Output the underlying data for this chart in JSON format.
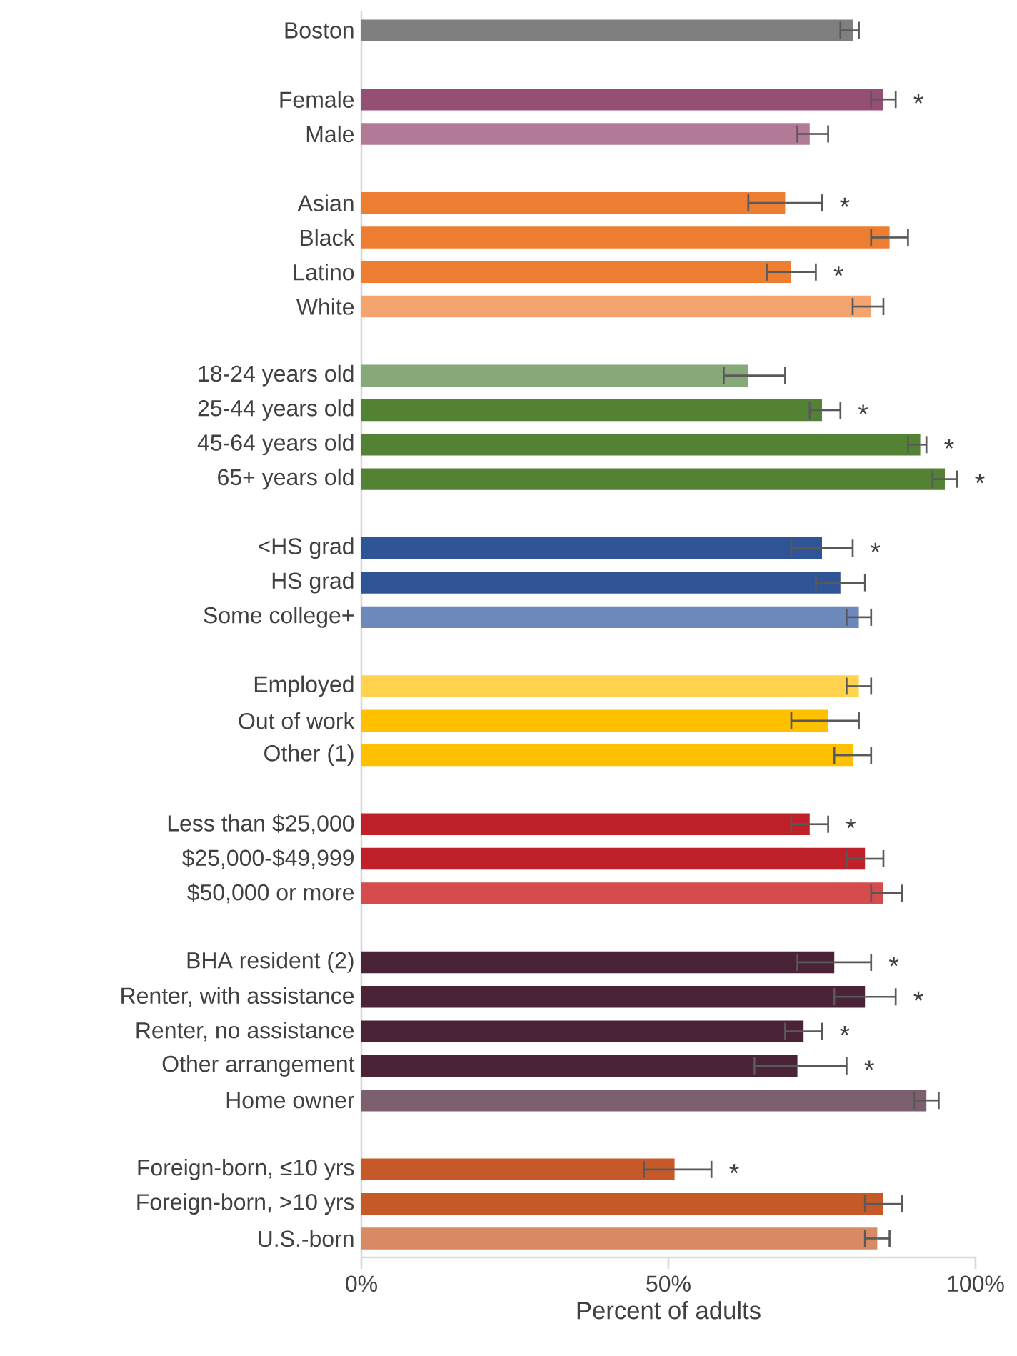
{
  "chart_data": {
    "type": "bar",
    "orientation": "horizontal",
    "xlabel": "Percent of adults",
    "categories": [
      "Boston",
      null,
      "Female",
      "Male",
      null,
      "Asian",
      "Black",
      "Latino",
      "White",
      null,
      "18-24 years old",
      "25-44 years old",
      "45-64 years old",
      "65+ years old",
      null,
      "<HS grad",
      "HS grad",
      "Some college+",
      null,
      "Employed",
      "Out of work",
      "Other (1)",
      null,
      "Less than $25,000",
      "$25,000-$49,999",
      "$50,000 or more",
      null,
      "BHA resident (2)",
      "Renter, with assistance",
      "Renter, no assistance",
      "Other arrangement",
      "Home owner",
      null,
      "Foreign-born, ≤10 yrs",
      "Foreign-born, >10 yrs",
      "U.S.-born"
    ],
    "values": [
      80,
      null,
      85,
      73,
      null,
      69,
      86,
      70,
      83,
      null,
      63,
      75,
      91,
      95,
      null,
      75,
      78,
      81,
      null,
      81,
      76,
      80,
      null,
      73,
      82,
      85,
      null,
      77,
      82,
      72,
      71,
      92,
      null,
      51,
      85,
      84
    ],
    "errors": [
      [
        78,
        81
      ],
      null,
      [
        83,
        87
      ],
      [
        71,
        76
      ],
      null,
      [
        63,
        75
      ],
      [
        83,
        89
      ],
      [
        66,
        74
      ],
      [
        80,
        85
      ],
      null,
      [
        59,
        69
      ],
      [
        73,
        78
      ],
      [
        89,
        92
      ],
      [
        93,
        97
      ],
      null,
      [
        70,
        80
      ],
      [
        74,
        82
      ],
      [
        79,
        83
      ],
      null,
      [
        79,
        83
      ],
      [
        70,
        81
      ],
      [
        77,
        83
      ],
      null,
      [
        70,
        76
      ],
      [
        79,
        85
      ],
      [
        83,
        88
      ],
      null,
      [
        71,
        83
      ],
      [
        77,
        87
      ],
      [
        69,
        75
      ],
      [
        64,
        79
      ],
      [
        90,
        94
      ],
      null,
      [
        46,
        57
      ],
      [
        82,
        88
      ],
      [
        82,
        86
      ]
    ],
    "colors": [
      "#7f7f7f",
      null,
      "#954f72",
      "#b27a96",
      null,
      "#ed7d31",
      "#ed7d31",
      "#ed7d31",
      "#f3a46f",
      null,
      "#87a878",
      "#548235",
      "#548235",
      "#548235",
      null,
      "#2f5597",
      "#2f5597",
      "#6d88bb",
      null,
      "#ffd34d",
      "#ffc000",
      "#ffc000",
      null,
      "#c0202a",
      "#c0202a",
      "#d44c4c",
      null,
      "#4a2338",
      "#4a2338",
      "#4a2338",
      "#4a2338",
      "#7d6070",
      null,
      "#c55a28",
      "#c55a28",
      "#d88a65"
    ],
    "xlim": [
      0,
      100
    ],
    "xticks": [
      {
        "value": 0,
        "label": "0%"
      },
      {
        "value": 50,
        "label": "50%"
      },
      {
        "value": 100,
        "label": "100%"
      }
    ],
    "value_labels": [
      null,
      null,
      "*",
      null,
      null,
      "*",
      null,
      "*",
      null,
      null,
      null,
      "*",
      "*",
      "*",
      null,
      "*",
      null,
      null,
      null,
      null,
      null,
      null,
      null,
      "*",
      null,
      null,
      null,
      "*",
      "*",
      "*",
      "*",
      null,
      null,
      "*",
      null,
      null
    ]
  }
}
